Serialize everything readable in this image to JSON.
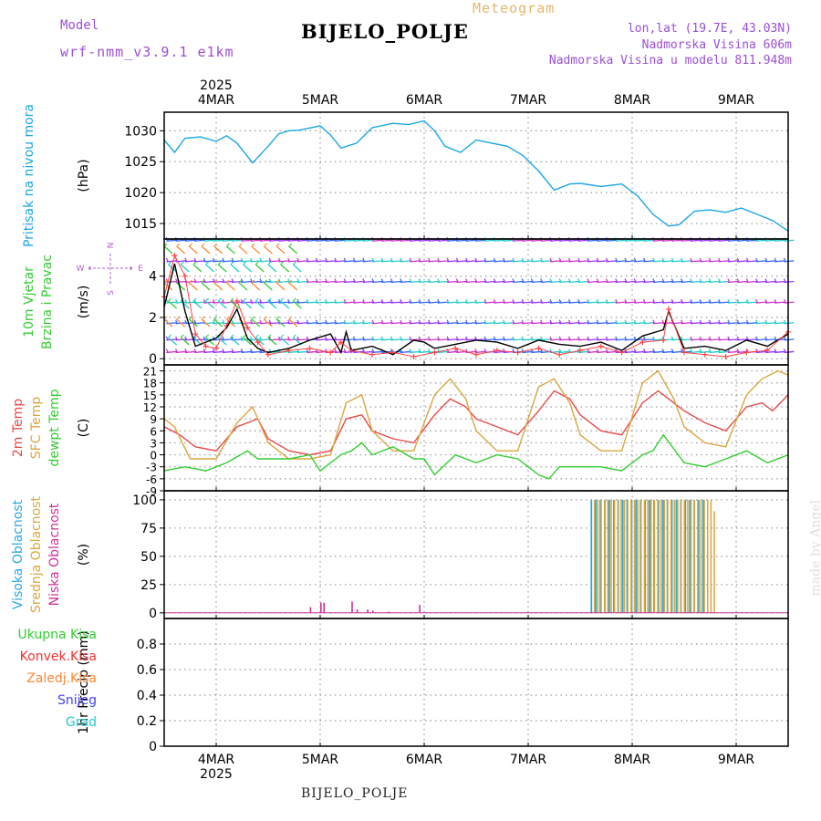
{
  "header": {
    "model_label": "Model",
    "model_name": "wrf-nmm_v3.9.1 e1km",
    "meteogram_label": "Meteogram",
    "station": "BIJELO_POLJE",
    "info_lonlat": "lon,lat (19.7E, 43.03N)",
    "info_elevation": "Nadmorska Visina 606m",
    "info_model_elevation": "Nadmorska Visina u modelu 811.948m"
  },
  "signature": "made by Angel",
  "footer_station": "BIJELO_POLJE",
  "colors": {
    "pressure": "#1aa6e6",
    "temp2m": "#e84a4a",
    "sfc_temp": "#d9a640",
    "dewpt": "#33cc33",
    "high_cloud": "#29a8e0",
    "mid_cloud": "#d9a640",
    "low_cloud": "#cc3399",
    "wind_speed": "#000000",
    "wind_gust": "#ff4444",
    "total_precip": "#33cc33",
    "conv_precip": "#ee3333",
    "frz_precip": "#ff8833",
    "snow": "#4444ee",
    "graupel": "#22cccc"
  },
  "chart_data": {
    "type": "line",
    "time_axis": {
      "year_label": "2025",
      "start": "2025-03-03T12:00",
      "end": "2025-03-09T12:00",
      "tick_labels": [
        "4MAR",
        "5MAR",
        "6MAR",
        "7MAR",
        "8MAR",
        "9MAR"
      ],
      "tick_times": [
        "2025-03-04",
        "2025-03-05",
        "2025-03-06",
        "2025-03-07",
        "2025-03-08",
        "2025-03-09"
      ],
      "grid": true
    },
    "panels": [
      {
        "id": "pressure",
        "ylabel_lines": [
          "Pritisak na nivou mora"
        ],
        "unit": "(hPa)",
        "ylim": [
          1012.5,
          1033
        ],
        "yticks": [
          1015,
          1020,
          1025,
          1030
        ],
        "series": [
          {
            "name": "",
            "color_key": "pressure",
            "x": [
              0,
              0.1,
              0.2,
              0.35,
              0.5,
              0.6,
              0.7,
              0.85,
              1.0,
              1.1,
              1.2,
              1.3,
              1.5,
              1.6,
              1.7,
              1.85,
              2.0,
              2.2,
              2.35,
              2.5,
              2.6,
              2.7,
              2.85,
              3.0,
              3.15,
              3.3,
              3.45,
              3.6,
              3.75,
              3.9,
              4.0,
              4.2,
              4.4,
              4.55,
              4.7,
              4.85,
              4.95,
              5.1,
              5.25,
              5.4,
              5.55,
              5.7,
              5.85,
              6.0
            ],
            "values": [
              1028.5,
              1026.5,
              1028.8,
              1029.0,
              1028.3,
              1029.2,
              1028.0,
              1024.8,
              1027.5,
              1029.5,
              1030.0,
              1030.1,
              1030.8,
              1029.3,
              1027.2,
              1028.0,
              1030.5,
              1031.2,
              1031.0,
              1031.6,
              1030.0,
              1027.5,
              1026.5,
              1028.5,
              1028.0,
              1027.5,
              1026.0,
              1023.5,
              1020.4,
              1021.4,
              1021.5,
              1021.0,
              1021.4,
              1019.5,
              1016.5,
              1014.6,
              1014.8,
              1017.0,
              1017.2,
              1016.8,
              1017.5,
              1016.5,
              1015.5,
              1013.8
            ]
          }
        ]
      },
      {
        "id": "wind",
        "ylabel_lines": [
          "10m Vjetar",
          "Brzina i Pravac"
        ],
        "unit": "(m/s)",
        "compass": {
          "n": "N",
          "e": "E",
          "s": "S",
          "w": "W"
        },
        "ylim": [
          -0.3,
          5.8
        ],
        "yticks": [
          0,
          2,
          4
        ],
        "barb_levels": [
          0.3,
          0.9,
          1.7,
          2.7,
          3.7,
          4.7,
          5.7
        ],
        "series": [
          {
            "name": "",
            "color_key": "wind_speed",
            "x": [
              0,
              0.1,
              0.2,
              0.3,
              0.4,
              0.5,
              0.6,
              0.7,
              0.8,
              0.9,
              1.0,
              1.2,
              1.4,
              1.6,
              1.7,
              1.75,
              1.8,
              2.0,
              2.2,
              2.4,
              2.5,
              2.6,
              2.8,
              3.0,
              3.2,
              3.4,
              3.6,
              3.8,
              4.0,
              4.2,
              4.4,
              4.6,
              4.8,
              4.85,
              5.0,
              5.2,
              5.4,
              5.6,
              5.8,
              6.0
            ],
            "values": [
              2.5,
              4.6,
              2.3,
              0.6,
              0.8,
              1.0,
              1.5,
              2.4,
              1.0,
              0.5,
              0.3,
              0.5,
              0.9,
              1.2,
              0.3,
              1.3,
              0.4,
              0.6,
              0.2,
              0.9,
              0.8,
              0.5,
              0.7,
              0.9,
              0.8,
              0.5,
              0.9,
              0.7,
              0.6,
              0.8,
              0.4,
              1.1,
              1.4,
              2.3,
              0.5,
              0.6,
              0.4,
              0.9,
              0.6,
              1.2
            ]
          },
          {
            "name": "",
            "color_key": "wind_gust",
            "x": [
              0,
              0.1,
              0.2,
              0.3,
              0.4,
              0.5,
              0.6,
              0.7,
              0.8,
              0.9,
              1.0,
              1.2,
              1.4,
              1.6,
              1.7,
              1.8,
              2.0,
              2.2,
              2.4,
              2.6,
              2.8,
              3.0,
              3.2,
              3.4,
              3.6,
              3.8,
              4.0,
              4.2,
              4.4,
              4.6,
              4.8,
              4.85,
              5.0,
              5.2,
              5.4,
              5.6,
              5.8,
              6.0
            ],
            "values": [
              3.0,
              5.0,
              4.0,
              1.2,
              0.6,
              0.5,
              1.6,
              2.8,
              1.5,
              0.8,
              0.2,
              0.4,
              0.5,
              0.3,
              0.8,
              0.4,
              0.2,
              0.3,
              0.1,
              0.3,
              0.5,
              0.2,
              0.4,
              0.3,
              0.5,
              0.2,
              0.4,
              0.6,
              0.3,
              0.8,
              0.9,
              2.4,
              0.3,
              0.2,
              0.1,
              0.3,
              0.4,
              1.3
            ]
          }
        ]
      },
      {
        "id": "temperature",
        "ylabel_lines": [
          "2m Temp",
          "SFC Temp",
          "dewpt Temp"
        ],
        "unit": "(C)",
        "ylim": [
          -9,
          22.5
        ],
        "yticks": [
          -9,
          -6,
          -3,
          0,
          3,
          6,
          9,
          12,
          15,
          18,
          21
        ],
        "series": [
          {
            "name": "",
            "color_key": "temp2m",
            "x": [
              0,
              0.15,
              0.3,
              0.5,
              0.7,
              0.9,
              1.0,
              1.2,
              1.4,
              1.6,
              1.75,
              1.9,
              2.0,
              2.2,
              2.4,
              2.6,
              2.75,
              2.9,
              3.0,
              3.2,
              3.4,
              3.6,
              3.75,
              3.9,
              4.0,
              4.2,
              4.4,
              4.6,
              4.75,
              4.9,
              5.0,
              5.2,
              5.4,
              5.6,
              5.75,
              5.85,
              6.0
            ],
            "values": [
              7,
              5,
              2,
              1,
              7,
              9,
              4,
              1,
              0,
              1,
              9,
              10,
              6,
              4,
              3,
              10,
              14,
              12,
              9,
              7,
              5,
              11,
              16,
              14,
              10,
              6,
              5,
              13,
              16,
              13,
              11,
              8,
              6,
              12,
              13,
              11,
              15
            ]
          },
          {
            "name": "",
            "color_key": "sfc_temp",
            "x": [
              0,
              0.1,
              0.25,
              0.5,
              0.7,
              0.85,
              1.0,
              1.2,
              1.4,
              1.6,
              1.75,
              1.9,
              2.0,
              2.2,
              2.4,
              2.6,
              2.75,
              2.9,
              3.0,
              3.2,
              3.4,
              3.6,
              3.75,
              3.9,
              4.0,
              4.2,
              4.4,
              4.6,
              4.75,
              4.9,
              5.0,
              5.2,
              5.4,
              5.6,
              5.75,
              5.9,
              6.0
            ],
            "values": [
              9,
              7,
              -1,
              -1,
              8,
              12,
              3,
              -1,
              -1,
              0,
              13,
              15,
              6,
              1,
              1,
              15,
              19,
              14,
              6,
              1,
              1,
              17,
              19,
              13,
              5,
              1,
              1,
              18,
              21,
              14,
              7,
              3,
              2,
              15,
              19,
              21,
              20
            ]
          },
          {
            "name": "",
            "color_key": "dewpt",
            "x": [
              0,
              0.2,
              0.4,
              0.6,
              0.8,
              0.9,
              1.0,
              1.2,
              1.4,
              1.5,
              1.7,
              1.8,
              1.9,
              2.0,
              2.2,
              2.4,
              2.5,
              2.6,
              2.8,
              3.0,
              3.2,
              3.4,
              3.6,
              3.7,
              3.8,
              4.0,
              4.2,
              4.4,
              4.6,
              4.7,
              4.8,
              5.0,
              5.2,
              5.4,
              5.6,
              5.8,
              6.0
            ],
            "values": [
              -4,
              -3,
              -4,
              -2,
              1,
              -1,
              -1,
              -1,
              0,
              -4,
              0,
              1,
              3,
              0,
              2,
              -1,
              -1,
              -5,
              0,
              -2,
              0,
              -1,
              -5,
              -6,
              -3,
              -3,
              -3,
              -4,
              0,
              1,
              5,
              -2,
              -3,
              -1,
              1,
              -2,
              0
            ]
          }
        ]
      },
      {
        "id": "cloud",
        "ylabel_lines": [
          "Visoka Oblacnost",
          "Srednja Oblacnost",
          "Niska Oblacnost"
        ],
        "unit": "(%)",
        "ylim": [
          -5,
          108
        ],
        "yticks": [
          0,
          25,
          50,
          75,
          100
        ],
        "high_cloud": {
          "start": 4.1,
          "end": 5.2,
          "value": 100
        },
        "mid_cloud": {
          "start": 4.12,
          "end": 5.3,
          "value": 100,
          "last_value": 90
        },
        "low_cloud_x": [
          1.4,
          1.5,
          1.53,
          1.8,
          1.85,
          1.95,
          2.0,
          2.15,
          2.45
        ],
        "low_cloud_values": [
          5,
          9,
          9,
          10,
          3,
          3,
          2,
          1,
          7
        ]
      },
      {
        "id": "precip",
        "ylabel_lines": [
          "Ukupna Kisa",
          "Konvek.Kisa",
          "Zaledj.Kisa",
          "Snijeg",
          "Grad"
        ],
        "unit": "1hr Precip (mm)",
        "ylim": [
          0,
          1.0
        ],
        "yticks": [
          0,
          0.2,
          0.4,
          0.6,
          0.8
        ],
        "series": []
      }
    ]
  }
}
